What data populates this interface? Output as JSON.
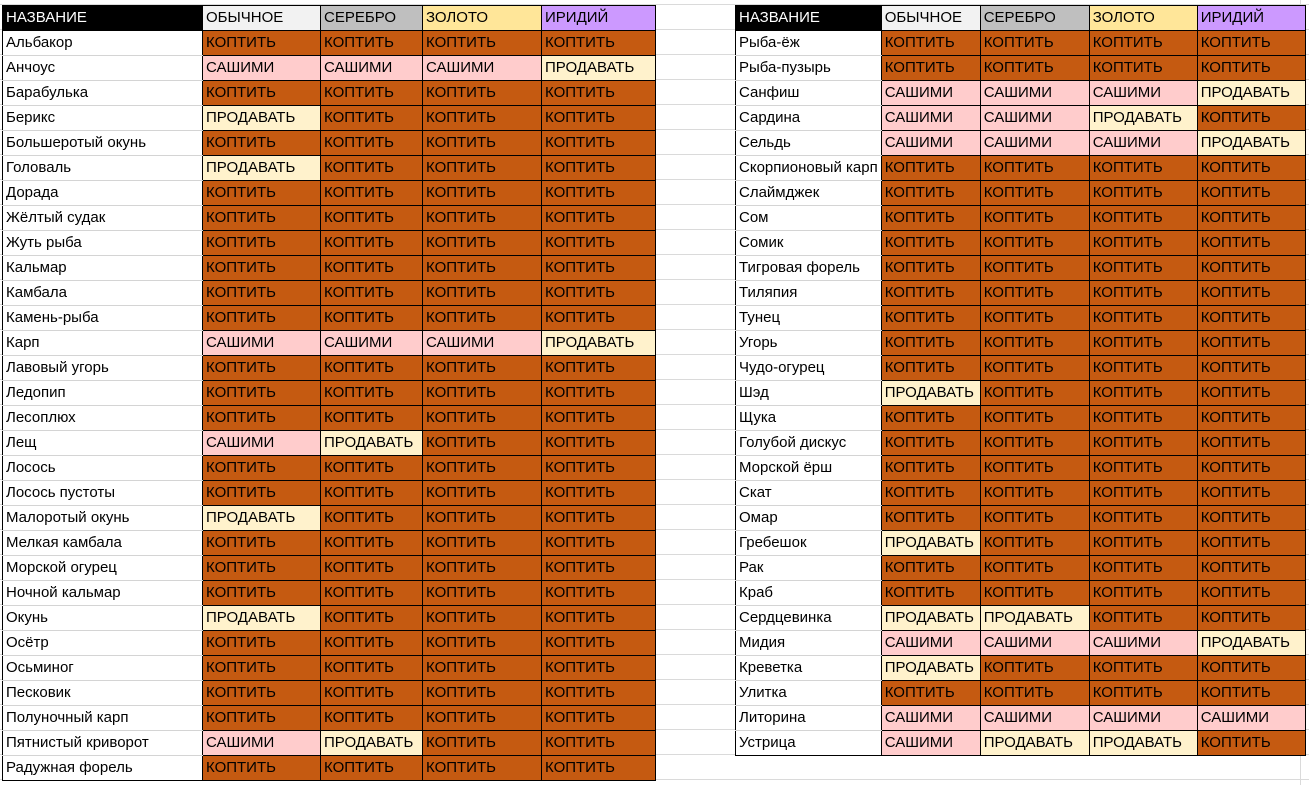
{
  "colors": {
    "smoke": "#c55a11",
    "sashimi": "#ffcccc",
    "sell": "#fff2cc",
    "header_name": "#000000",
    "header_normal": "#f2f2f2",
    "header_silver": "#bfbfbf",
    "header_gold": "#ffe699",
    "header_iridium": "#cc99ff"
  },
  "headers": [
    "НАЗВАНИЕ",
    "ОБЫЧНОЕ",
    "СЕРЕБРО",
    "ЗОЛОТО",
    "ИРИДИЙ"
  ],
  "left_table": [
    [
      "Альбакор",
      "КОПТИТЬ",
      "КОПТИТЬ",
      "КОПТИТЬ",
      "КОПТИТЬ"
    ],
    [
      "Анчоус",
      "САШИМИ",
      "САШИМИ",
      "САШИМИ",
      "ПРОДАВАТЬ"
    ],
    [
      "Барабулька",
      "КОПТИТЬ",
      "КОПТИТЬ",
      "КОПТИТЬ",
      "КОПТИТЬ"
    ],
    [
      "Берикс",
      "ПРОДАВАТЬ",
      "КОПТИТЬ",
      "КОПТИТЬ",
      "КОПТИТЬ"
    ],
    [
      "Большеротый окунь",
      "КОПТИТЬ",
      "КОПТИТЬ",
      "КОПТИТЬ",
      "КОПТИТЬ"
    ],
    [
      "Головаль",
      "ПРОДАВАТЬ",
      "КОПТИТЬ",
      "КОПТИТЬ",
      "КОПТИТЬ"
    ],
    [
      "Дорада",
      "КОПТИТЬ",
      "КОПТИТЬ",
      "КОПТИТЬ",
      "КОПТИТЬ"
    ],
    [
      "Жёлтый судак",
      "КОПТИТЬ",
      "КОПТИТЬ",
      "КОПТИТЬ",
      "КОПТИТЬ"
    ],
    [
      "Жуть рыба",
      "КОПТИТЬ",
      "КОПТИТЬ",
      "КОПТИТЬ",
      "КОПТИТЬ"
    ],
    [
      "Кальмар",
      "КОПТИТЬ",
      "КОПТИТЬ",
      "КОПТИТЬ",
      "КОПТИТЬ"
    ],
    [
      "Камбала",
      "КОПТИТЬ",
      "КОПТИТЬ",
      "КОПТИТЬ",
      "КОПТИТЬ"
    ],
    [
      "Камень-рыба",
      "КОПТИТЬ",
      "КОПТИТЬ",
      "КОПТИТЬ",
      "КОПТИТЬ"
    ],
    [
      "Карп",
      "САШИМИ",
      "САШИМИ",
      "САШИМИ",
      "ПРОДАВАТЬ"
    ],
    [
      "Лавовый угорь",
      "КОПТИТЬ",
      "КОПТИТЬ",
      "КОПТИТЬ",
      "КОПТИТЬ"
    ],
    [
      "Ледопип",
      "КОПТИТЬ",
      "КОПТИТЬ",
      "КОПТИТЬ",
      "КОПТИТЬ"
    ],
    [
      "Лесоплюх",
      "КОПТИТЬ",
      "КОПТИТЬ",
      "КОПТИТЬ",
      "КОПТИТЬ"
    ],
    [
      "Лещ",
      "САШИМИ",
      "ПРОДАВАТЬ",
      "КОПТИТЬ",
      "КОПТИТЬ"
    ],
    [
      "Лосось",
      "КОПТИТЬ",
      "КОПТИТЬ",
      "КОПТИТЬ",
      "КОПТИТЬ"
    ],
    [
      "Лосось пустоты",
      "КОПТИТЬ",
      "КОПТИТЬ",
      "КОПТИТЬ",
      "КОПТИТЬ"
    ],
    [
      "Малоротый окунь",
      "ПРОДАВАТЬ",
      "КОПТИТЬ",
      "КОПТИТЬ",
      "КОПТИТЬ"
    ],
    [
      "Мелкая камбала",
      "КОПТИТЬ",
      "КОПТИТЬ",
      "КОПТИТЬ",
      "КОПТИТЬ"
    ],
    [
      "Морской огурец",
      "КОПТИТЬ",
      "КОПТИТЬ",
      "КОПТИТЬ",
      "КОПТИТЬ"
    ],
    [
      "Ночной кальмар",
      "КОПТИТЬ",
      "КОПТИТЬ",
      "КОПТИТЬ",
      "КОПТИТЬ"
    ],
    [
      "Окунь",
      "ПРОДАВАТЬ",
      "КОПТИТЬ",
      "КОПТИТЬ",
      "КОПТИТЬ"
    ],
    [
      "Осётр",
      "КОПТИТЬ",
      "КОПТИТЬ",
      "КОПТИТЬ",
      "КОПТИТЬ"
    ],
    [
      "Осьминог",
      "КОПТИТЬ",
      "КОПТИТЬ",
      "КОПТИТЬ",
      "КОПТИТЬ"
    ],
    [
      "Песковик",
      "КОПТИТЬ",
      "КОПТИТЬ",
      "КОПТИТЬ",
      "КОПТИТЬ"
    ],
    [
      "Полуночный карп",
      "КОПТИТЬ",
      "КОПТИТЬ",
      "КОПТИТЬ",
      "КОПТИТЬ"
    ],
    [
      "Пятнистый криворот",
      "САШИМИ",
      "ПРОДАВАТЬ",
      "КОПТИТЬ",
      "КОПТИТЬ"
    ],
    [
      "Радужная форель",
      "КОПТИТЬ",
      "КОПТИТЬ",
      "КОПТИТЬ",
      "КОПТИТЬ"
    ]
  ],
  "right_table": [
    [
      "Рыба-ёж",
      "КОПТИТЬ",
      "КОПТИТЬ",
      "КОПТИТЬ",
      "КОПТИТЬ"
    ],
    [
      "Рыба-пузырь",
      "КОПТИТЬ",
      "КОПТИТЬ",
      "КОПТИТЬ",
      "КОПТИТЬ"
    ],
    [
      "Санфиш",
      "САШИМИ",
      "САШИМИ",
      "САШИМИ",
      "ПРОДАВАТЬ"
    ],
    [
      "Сардина",
      "САШИМИ",
      "САШИМИ",
      "ПРОДАВАТЬ",
      "КОПТИТЬ"
    ],
    [
      "Сельдь",
      "САШИМИ",
      "САШИМИ",
      "САШИМИ",
      "ПРОДАВАТЬ"
    ],
    [
      "Скорпионовый карп",
      "КОПТИТЬ",
      "КОПТИТЬ",
      "КОПТИТЬ",
      "КОПТИТЬ"
    ],
    [
      "Слаймджек",
      "КОПТИТЬ",
      "КОПТИТЬ",
      "КОПТИТЬ",
      "КОПТИТЬ"
    ],
    [
      "Сом",
      "КОПТИТЬ",
      "КОПТИТЬ",
      "КОПТИТЬ",
      "КОПТИТЬ"
    ],
    [
      "Сомик",
      "КОПТИТЬ",
      "КОПТИТЬ",
      "КОПТИТЬ",
      "КОПТИТЬ"
    ],
    [
      "Тигровая форель",
      "КОПТИТЬ",
      "КОПТИТЬ",
      "КОПТИТЬ",
      "КОПТИТЬ"
    ],
    [
      "Тиляпия",
      "КОПТИТЬ",
      "КОПТИТЬ",
      "КОПТИТЬ",
      "КОПТИТЬ"
    ],
    [
      "Тунец",
      "КОПТИТЬ",
      "КОПТИТЬ",
      "КОПТИТЬ",
      "КОПТИТЬ"
    ],
    [
      "Угорь",
      "КОПТИТЬ",
      "КОПТИТЬ",
      "КОПТИТЬ",
      "КОПТИТЬ"
    ],
    [
      "Чудо-огурец",
      "КОПТИТЬ",
      "КОПТИТЬ",
      "КОПТИТЬ",
      "КОПТИТЬ"
    ],
    [
      "Шэд",
      "ПРОДАВАТЬ",
      "КОПТИТЬ",
      "КОПТИТЬ",
      "КОПТИТЬ"
    ],
    [
      "Щука",
      "КОПТИТЬ",
      "КОПТИТЬ",
      "КОПТИТЬ",
      "КОПТИТЬ"
    ],
    [
      "Голубой дискус",
      "КОПТИТЬ",
      "КОПТИТЬ",
      "КОПТИТЬ",
      "КОПТИТЬ"
    ],
    [
      "Морской ёрш",
      "КОПТИТЬ",
      "КОПТИТЬ",
      "КОПТИТЬ",
      "КОПТИТЬ"
    ],
    [
      "Скат",
      "КОПТИТЬ",
      "КОПТИТЬ",
      "КОПТИТЬ",
      "КОПТИТЬ"
    ],
    [
      "Омар",
      "КОПТИТЬ",
      "КОПТИТЬ",
      "КОПТИТЬ",
      "КОПТИТЬ"
    ],
    [
      "Гребешок",
      "ПРОДАВАТЬ",
      "КОПТИТЬ",
      "КОПТИТЬ",
      "КОПТИТЬ"
    ],
    [
      "Рак",
      "КОПТИТЬ",
      "КОПТИТЬ",
      "КОПТИТЬ",
      "КОПТИТЬ"
    ],
    [
      "Краб",
      "КОПТИТЬ",
      "КОПТИТЬ",
      "КОПТИТЬ",
      "КОПТИТЬ"
    ],
    [
      "Сердцевинка",
      "ПРОДАВАТЬ",
      "ПРОДАВАТЬ",
      "КОПТИТЬ",
      "КОПТИТЬ"
    ],
    [
      "Мидия",
      "САШИМИ",
      "САШИМИ",
      "САШИМИ",
      "ПРОДАВАТЬ"
    ],
    [
      "Креветка",
      "ПРОДАВАТЬ",
      "КОПТИТЬ",
      "КОПТИТЬ",
      "КОПТИТЬ"
    ],
    [
      "Улитка",
      "КОПТИТЬ",
      "КОПТИТЬ",
      "КОПТИТЬ",
      "КОПТИТЬ"
    ],
    [
      "Литорина",
      "САШИМИ",
      "САШИМИ",
      "САШИМИ",
      "САШИМИ"
    ],
    [
      "Устрица",
      "САШИМИ",
      "ПРОДАВАТЬ",
      "ПРОДАВАТЬ",
      "КОПТИТЬ"
    ]
  ]
}
